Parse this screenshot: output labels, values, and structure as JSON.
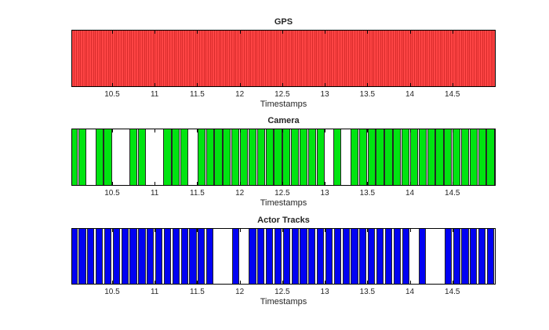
{
  "figure": {
    "background": "#ffffff",
    "text_color": "#262626",
    "axes_edge_color": "#000000"
  },
  "chart_data": [
    {
      "type": "event-raster",
      "title": "GPS",
      "xlabel": "Timestamps",
      "style": "dense-lines",
      "fill_color": "#ff4545",
      "line_color": "#d92c2c",
      "edge_color": "#262626",
      "xlim": [
        10.03,
        15.0
      ],
      "xticks": [
        10.5,
        11,
        11.5,
        12,
        12.5,
        13,
        13.5,
        14,
        14.5
      ],
      "xtick_labels": [
        "10.5",
        "11",
        "11.5",
        "12",
        "12.5",
        "13",
        "13.5",
        "14",
        "14.5"
      ],
      "timestamps": {
        "start": 10.04,
        "end": 14.99,
        "step": 0.025
      },
      "dropped": []
    },
    {
      "type": "event-raster",
      "title": "Camera",
      "xlabel": "Timestamps",
      "style": "bars",
      "bar_width": 0.094,
      "fill_color": "#00e411",
      "line_color": "#00e411",
      "edge_color": "#262626",
      "xlim": [
        10.03,
        15.0
      ],
      "xticks": [
        10.5,
        11,
        11.5,
        12,
        12.5,
        13,
        13.5,
        14,
        14.5
      ],
      "xtick_labels": [
        "10.5",
        "11",
        "11.5",
        "12",
        "12.5",
        "13",
        "13.5",
        "14",
        "14.5"
      ],
      "timestamps": [
        10.05,
        10.15,
        10.35,
        10.45,
        10.75,
        10.85,
        11.15,
        11.25,
        11.35,
        11.55,
        11.65,
        11.75,
        11.85,
        11.95,
        12.05,
        12.15,
        12.25,
        12.35,
        12.45,
        12.55,
        12.65,
        12.75,
        12.85,
        12.95,
        13.15,
        13.35,
        13.45,
        13.55,
        13.65,
        13.75,
        13.85,
        13.95,
        14.05,
        14.15,
        14.25,
        14.35,
        14.45,
        14.55,
        14.65,
        14.75,
        14.85,
        14.95
      ],
      "dropped": [
        10.25,
        10.55,
        10.65,
        10.95,
        11.05,
        11.45,
        13.05,
        13.25
      ]
    },
    {
      "type": "event-raster",
      "title": "Actor Tracks",
      "xlabel": "Timestamps",
      "style": "bars",
      "bar_width": 0.085,
      "fill_color": "#0202f2",
      "line_color": "#0202f2",
      "edge_color": "#262626",
      "xlim": [
        10.03,
        15.0
      ],
      "xticks": [
        10.5,
        11,
        11.5,
        12,
        12.5,
        13,
        13.5,
        14,
        14.5
      ],
      "xtick_labels": [
        "10.5",
        "11",
        "11.5",
        "12",
        "12.5",
        "13",
        "13.5",
        "14",
        "14.5"
      ],
      "timestamps": [
        10.05,
        10.15,
        10.25,
        10.35,
        10.45,
        10.55,
        10.65,
        10.75,
        10.85,
        10.95,
        11.05,
        11.15,
        11.25,
        11.35,
        11.45,
        11.55,
        11.65,
        11.95,
        12.15,
        12.25,
        12.35,
        12.45,
        12.55,
        12.65,
        12.75,
        12.85,
        12.95,
        13.05,
        13.15,
        13.25,
        13.35,
        13.45,
        13.55,
        13.65,
        13.75,
        13.85,
        13.95,
        14.15,
        14.45,
        14.55,
        14.65,
        14.75,
        14.85,
        14.95
      ],
      "dropped": [
        11.75,
        11.85,
        12.05,
        14.05,
        14.25,
        14.35
      ]
    }
  ]
}
